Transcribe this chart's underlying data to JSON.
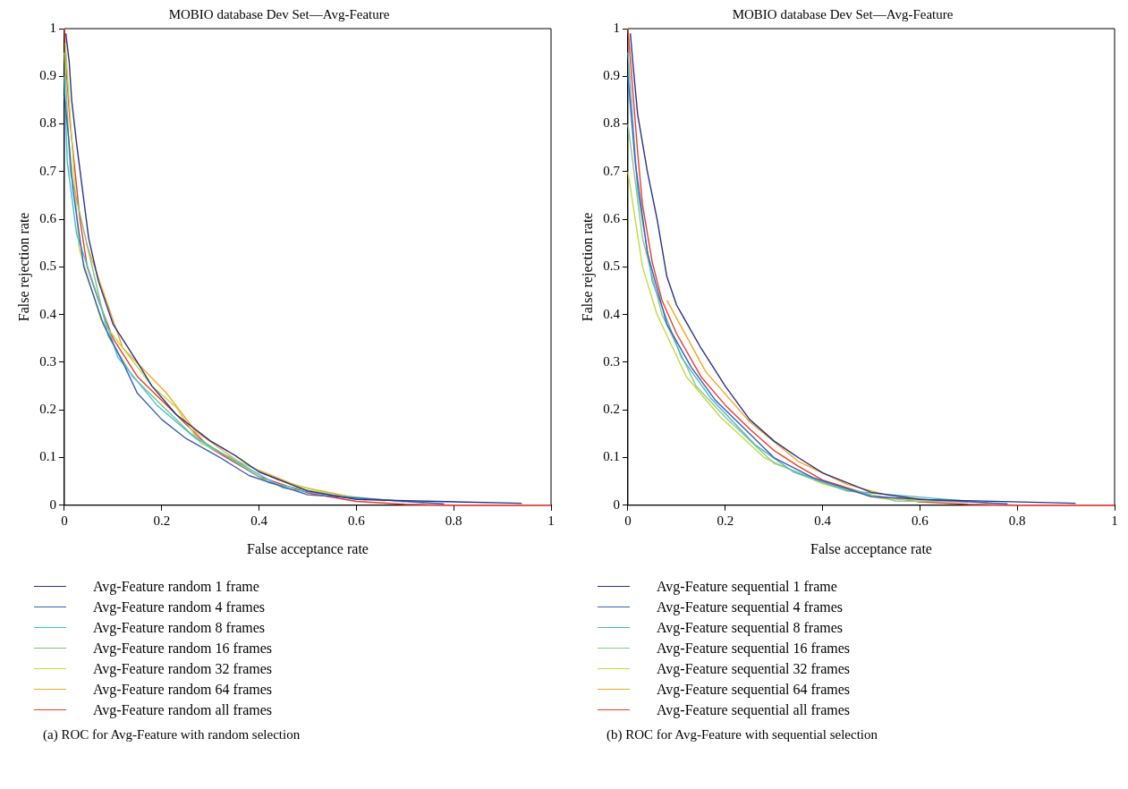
{
  "chart_data": [
    {
      "type": "line",
      "title": "MOBIO database Dev Set—Avg-Feature",
      "xlabel": "False acceptance rate",
      "ylabel": "False rejection rate",
      "xlim": [
        0,
        1
      ],
      "ylim": [
        0,
        1
      ],
      "xticks": [
        0,
        0.2,
        0.4,
        0.6,
        0.8,
        1
      ],
      "yticks": [
        0,
        0.1,
        0.2,
        0.3,
        0.4,
        0.5,
        0.6,
        0.7,
        0.8,
        0.9,
        1
      ],
      "grid": false,
      "legend": "bottom",
      "marker": "none",
      "line_style": "solid",
      "annotations": [
        "(a)  ROC for Avg-Feature with random selection"
      ],
      "series": [
        {
          "name": "Avg-Feature random 1 frame",
          "color": "#2b2f8a",
          "x": [
            0.003,
            0.01,
            0.015,
            0.025,
            0.035,
            0.05,
            0.07,
            0.1,
            0.15,
            0.18,
            0.23,
            0.3,
            0.35,
            0.4,
            0.5,
            0.6,
            0.94
          ],
          "values": [
            0.99,
            0.93,
            0.85,
            0.76,
            0.68,
            0.56,
            0.47,
            0.38,
            0.3,
            0.25,
            0.19,
            0.135,
            0.105,
            0.07,
            0.03,
            0.012,
            0.004
          ]
        },
        {
          "name": "Avg-Feature random 4 frames",
          "color": "#3b5cb8",
          "x": [
            0,
            0.008,
            0.018,
            0.04,
            0.08,
            0.12,
            0.15,
            0.2,
            0.25,
            0.32,
            0.38,
            0.5,
            0.78
          ],
          "values": [
            0.86,
            0.78,
            0.66,
            0.5,
            0.38,
            0.3,
            0.235,
            0.18,
            0.14,
            0.1,
            0.062,
            0.022,
            0.003
          ]
        },
        {
          "name": "Avg-Feature random 8 frames",
          "color": "#3cc0e0",
          "x": [
            0,
            0.006,
            0.025,
            0.11,
            0.19,
            0.27,
            0.45,
            0.58,
            0.74
          ],
          "values": [
            0.9,
            0.72,
            0.57,
            0.31,
            0.21,
            0.14,
            0.036,
            0.016,
            0.005
          ]
        },
        {
          "name": "Avg-Feature random 16 frames",
          "color": "#7cc47c",
          "x": [
            0,
            0.012,
            0.09,
            0.14,
            0.26,
            0.42,
            0.55,
            0.7
          ],
          "values": [
            0.95,
            0.7,
            0.355,
            0.27,
            0.15,
            0.047,
            0.022,
            0.007
          ]
        },
        {
          "name": "Avg-Feature random 32 frames",
          "color": "#c2d941",
          "x": [
            0.002,
            0.03,
            0.075,
            0.18,
            0.23,
            0.28,
            0.44,
            0.56,
            0.66
          ],
          "values": [
            0.97,
            0.54,
            0.39,
            0.25,
            0.205,
            0.13,
            0.053,
            0.019,
            0.009
          ]
        },
        {
          "name": "Avg-Feature random 64 frames",
          "color": "#f5a623",
          "x": [
            0.045,
            0.12,
            0.21,
            0.27,
            0.36,
            0.48,
            0.62
          ],
          "values": [
            0.55,
            0.33,
            0.235,
            0.155,
            0.09,
            0.04,
            0.011
          ]
        },
        {
          "name": "Avg-Feature random all frames",
          "color": "#ee3a2a",
          "x": [
            0,
            0.005,
            0.012,
            0.022,
            0.032,
            0.047,
            0.07,
            0.1,
            0.15,
            0.2,
            0.25,
            0.3,
            0.35,
            0.4,
            0.5,
            0.6,
            0.7,
            0.8,
            1
          ],
          "values": [
            1,
            0.9,
            0.8,
            0.7,
            0.6,
            0.5,
            0.43,
            0.35,
            0.27,
            0.22,
            0.17,
            0.12,
            0.09,
            0.06,
            0.026,
            0.008,
            0.002,
            0,
            0
          ]
        }
      ]
    },
    {
      "type": "line",
      "title": "MOBIO database Dev Set—Avg-Feature",
      "xlabel": "False acceptance rate",
      "ylabel": "False rejection rate",
      "xlim": [
        0,
        1
      ],
      "ylim": [
        0,
        1
      ],
      "xticks": [
        0,
        0.2,
        0.4,
        0.6,
        0.8,
        1
      ],
      "yticks": [
        0,
        0.1,
        0.2,
        0.3,
        0.4,
        0.5,
        0.6,
        0.7,
        0.8,
        0.9,
        1
      ],
      "grid": false,
      "legend": "bottom",
      "marker": "none",
      "line_style": "solid",
      "annotations": [
        "(b)  ROC for Avg-Feature with sequential selection"
      ],
      "series": [
        {
          "name": "Avg-Feature sequential 1 frame",
          "color": "#2b2f8a",
          "x": [
            0.005,
            0.01,
            0.02,
            0.04,
            0.06,
            0.08,
            0.1,
            0.15,
            0.2,
            0.25,
            0.3,
            0.35,
            0.4,
            0.5,
            0.6,
            0.92
          ],
          "values": [
            0.99,
            0.93,
            0.82,
            0.7,
            0.6,
            0.48,
            0.42,
            0.33,
            0.25,
            0.18,
            0.135,
            0.1,
            0.068,
            0.027,
            0.012,
            0.004
          ]
        },
        {
          "name": "Avg-Feature sequential 4 frames",
          "color": "#3b5cb8",
          "x": [
            0,
            0.015,
            0.04,
            0.08,
            0.13,
            0.18,
            0.24,
            0.3,
            0.38,
            0.5,
            0.78
          ],
          "values": [
            0.9,
            0.72,
            0.53,
            0.38,
            0.29,
            0.22,
            0.16,
            0.1,
            0.058,
            0.018,
            0.003
          ]
        },
        {
          "name": "Avg-Feature sequential 8 frames",
          "color": "#4ab8c8",
          "x": [
            0,
            0.02,
            0.05,
            0.11,
            0.17,
            0.26,
            0.34,
            0.45,
            0.74
          ],
          "values": [
            0.95,
            0.66,
            0.47,
            0.31,
            0.225,
            0.128,
            0.07,
            0.03,
            0.005
          ]
        },
        {
          "name": "Avg-Feature sequential 16 frames",
          "color": "#8cc88c",
          "x": [
            0,
            0.03,
            0.07,
            0.14,
            0.2,
            0.3,
            0.42,
            0.55,
            0.7
          ],
          "values": [
            0.8,
            0.56,
            0.4,
            0.25,
            0.185,
            0.088,
            0.042,
            0.009,
            0.007
          ]
        },
        {
          "name": "Avg-Feature sequential 32 frames",
          "color": "#c2d941",
          "x": [
            0,
            0.03,
            0.06,
            0.12,
            0.19,
            0.28,
            0.4,
            0.52,
            0.66
          ],
          "values": [
            0.7,
            0.5,
            0.4,
            0.27,
            0.185,
            0.1,
            0.045,
            0.014,
            0.009
          ]
        },
        {
          "name": "Avg-Feature sequential 64 frames",
          "color": "#f5a623",
          "x": [
            0.08,
            0.16,
            0.25,
            0.35,
            0.45,
            0.53,
            0.62
          ],
          "values": [
            0.43,
            0.28,
            0.175,
            0.092,
            0.044,
            0.022,
            0.011
          ]
        },
        {
          "name": "Avg-Feature sequential all frames",
          "color": "#ee3a2a",
          "x": [
            0,
            0.01,
            0.02,
            0.03,
            0.05,
            0.07,
            0.1,
            0.15,
            0.2,
            0.25,
            0.3,
            0.35,
            0.4,
            0.5,
            0.6,
            0.7,
            0.8,
            1
          ],
          "values": [
            1,
            0.87,
            0.74,
            0.63,
            0.51,
            0.43,
            0.36,
            0.27,
            0.21,
            0.16,
            0.115,
            0.082,
            0.053,
            0.021,
            0.007,
            0.002,
            0,
            0
          ]
        }
      ]
    }
  ]
}
